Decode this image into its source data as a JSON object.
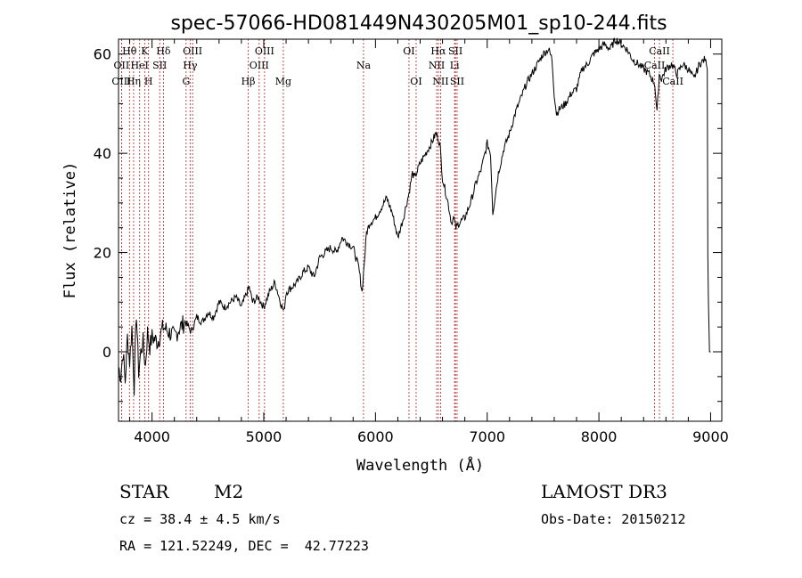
{
  "chart_data": {
    "type": "line",
    "title": "spec-57066-HD081449N430205M01_sp10-244.fits",
    "xlabel": "Wavelength (Å)",
    "ylabel": "Flux (relative)",
    "xlim": [
      3700,
      9100
    ],
    "ylim": [
      -14,
      63
    ],
    "xticks": [
      4000,
      5000,
      6000,
      7000,
      8000,
      9000
    ],
    "yticks": [
      0,
      20,
      40,
      60
    ],
    "line_color": "#000000",
    "marker_color": "#b22222",
    "series": [
      {
        "name": "flux",
        "x": [
          3700,
          3720,
          3740,
          3760,
          3780,
          3800,
          3820,
          3840,
          3860,
          3880,
          3900,
          3920,
          3940,
          3960,
          3980,
          4000,
          4050,
          4100,
          4150,
          4200,
          4250,
          4300,
          4350,
          4400,
          4450,
          4500,
          4550,
          4600,
          4650,
          4700,
          4750,
          4800,
          4850,
          4870,
          4900,
          4950,
          5000,
          5050,
          5100,
          5150,
          5180,
          5200,
          5250,
          5300,
          5350,
          5400,
          5450,
          5500,
          5550,
          5600,
          5650,
          5700,
          5750,
          5800,
          5850,
          5880,
          5900,
          5920,
          5950,
          6000,
          6050,
          6100,
          6150,
          6200,
          6250,
          6300,
          6330,
          6350,
          6400,
          6450,
          6500,
          6540,
          6563,
          6580,
          6600,
          6620,
          6650,
          6680,
          6700,
          6720,
          6750,
          6800,
          6850,
          6900,
          6950,
          7000,
          7030,
          7050,
          7100,
          7150,
          7200,
          7250,
          7300,
          7350,
          7400,
          7450,
          7500,
          7550,
          7580,
          7600,
          7620,
          7650,
          7700,
          7750,
          7800,
          7850,
          7900,
          7950,
          8000,
          8050,
          8100,
          8150,
          8200,
          8250,
          8300,
          8350,
          8400,
          8450,
          8500,
          8520,
          8540,
          8560,
          8600,
          8650,
          8700,
          8750,
          8800,
          8850,
          8900,
          8950,
          8970,
          8975,
          8980,
          8990,
          9000
        ],
        "y": [
          -3,
          -5,
          0,
          -6,
          3,
          -2,
          5,
          -7,
          8,
          -4,
          0,
          2,
          -3,
          4,
          1,
          3,
          2,
          5,
          4,
          3,
          5,
          6,
          4,
          7,
          6,
          8,
          7,
          10,
          9,
          10,
          11,
          9,
          12,
          13,
          10,
          11,
          9,
          12,
          14,
          10,
          8,
          12,
          13,
          14,
          16,
          17,
          15,
          19,
          20,
          21,
          20,
          23,
          22,
          21,
          17,
          12,
          18,
          24,
          26,
          27,
          29,
          31,
          28,
          23,
          27,
          32,
          36,
          35,
          38,
          40,
          42,
          44,
          43,
          41,
          35,
          33,
          30,
          26,
          27,
          25,
          26,
          27,
          30,
          34,
          37,
          42,
          40,
          28,
          36,
          41,
          44,
          48,
          51,
          54,
          56,
          58,
          60,
          61,
          59,
          52,
          48,
          49,
          50,
          52,
          53,
          57,
          58,
          60,
          61,
          62,
          61,
          63,
          62,
          61,
          59,
          58,
          57,
          56,
          54,
          48,
          56,
          55,
          57,
          58,
          56,
          58,
          57,
          55,
          58,
          59,
          57,
          20,
          10,
          0,
          0
        ]
      }
    ],
    "spectral_lines": [
      {
        "label": "Hθ",
        "wavelength": 3798,
        "row": 1
      },
      {
        "label": "OII",
        "wavelength": 3727,
        "row": 2
      },
      {
        "label": "OIII",
        "wavelength": 3727,
        "row": 3
      },
      {
        "label": "K",
        "wavelength": 3934,
        "row": 1
      },
      {
        "label": "HeI",
        "wavelength": 3889,
        "row": 2
      },
      {
        "label": "Hη",
        "wavelength": 3835,
        "row": 3
      },
      {
        "label": "Hδ",
        "wavelength": 4102,
        "row": 1
      },
      {
        "label": "SII",
        "wavelength": 4069,
        "row": 2
      },
      {
        "label": "H",
        "wavelength": 3969,
        "row": 3
      },
      {
        "label": "OIII",
        "wavelength": 4363,
        "row": 1
      },
      {
        "label": "Hγ",
        "wavelength": 4341,
        "row": 2
      },
      {
        "label": "G",
        "wavelength": 4305,
        "row": 3
      },
      {
        "label": "OIII",
        "wavelength": 5007,
        "row": 1
      },
      {
        "label": "OIII",
        "wavelength": 4959,
        "row": 2
      },
      {
        "label": "Hβ",
        "wavelength": 4861,
        "row": 3
      },
      {
        "label": "Mg",
        "wavelength": 5175,
        "row": 3
      },
      {
        "label": "Na",
        "wavelength": 5893,
        "row": 2
      },
      {
        "label": "OI",
        "wavelength": 6300,
        "row": 1
      },
      {
        "label": "OI",
        "wavelength": 6364,
        "row": 3
      },
      {
        "label": "Hα",
        "wavelength": 6563,
        "row": 1
      },
      {
        "label": "SII",
        "wavelength": 6716,
        "row": 1
      },
      {
        "label": "NII",
        "wavelength": 6548,
        "row": 2
      },
      {
        "label": "Li",
        "wavelength": 6708,
        "row": 2
      },
      {
        "label": "NII",
        "wavelength": 6583,
        "row": 3
      },
      {
        "label": "SII",
        "wavelength": 6731,
        "row": 3
      },
      {
        "label": "CaII",
        "wavelength": 8542,
        "row": 1
      },
      {
        "label": "CaII",
        "wavelength": 8498,
        "row": 2
      },
      {
        "label": "CaII",
        "wavelength": 8662,
        "row": 3
      }
    ]
  },
  "info": {
    "object_class": "STAR",
    "subclass": "M2",
    "survey": "LAMOST DR3",
    "cz": "cz = 38.4 ± 4.5 km/s",
    "obs_date": "Obs-Date: 20150212",
    "coords": "RA = 121.52249, DEC =  42.77223"
  }
}
